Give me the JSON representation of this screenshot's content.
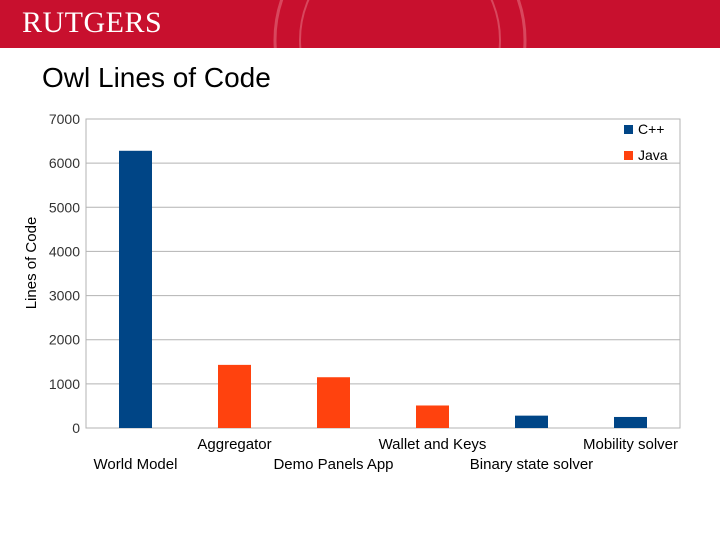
{
  "header": {
    "logo_text": "RUTGERS"
  },
  "slide": {
    "title": "Owl Lines of Code"
  },
  "colors": {
    "banner": "#c8102e",
    "cpp": "#004586",
    "java": "#ff420e",
    "grid": "#b3b3b3"
  },
  "chart_data": {
    "type": "bar",
    "title": "",
    "xlabel": "",
    "ylabel": "Lines of Code",
    "ylim": [
      0,
      7000
    ],
    "yticks": [
      0,
      1000,
      2000,
      3000,
      4000,
      5000,
      6000,
      7000
    ],
    "grid": true,
    "legend_position": "top-right",
    "categories": [
      "World Model",
      "Aggregator",
      "Demo Panels App",
      "Wallet and Keys",
      "Binary state solver",
      "Mobility solver"
    ],
    "series": [
      {
        "name": "C++",
        "color": "#004586",
        "values": [
          6280,
          null,
          null,
          null,
          280,
          250
        ]
      },
      {
        "name": "Java",
        "color": "#ff420e",
        "values": [
          null,
          1430,
          1150,
          510,
          null,
          null
        ]
      }
    ]
  }
}
